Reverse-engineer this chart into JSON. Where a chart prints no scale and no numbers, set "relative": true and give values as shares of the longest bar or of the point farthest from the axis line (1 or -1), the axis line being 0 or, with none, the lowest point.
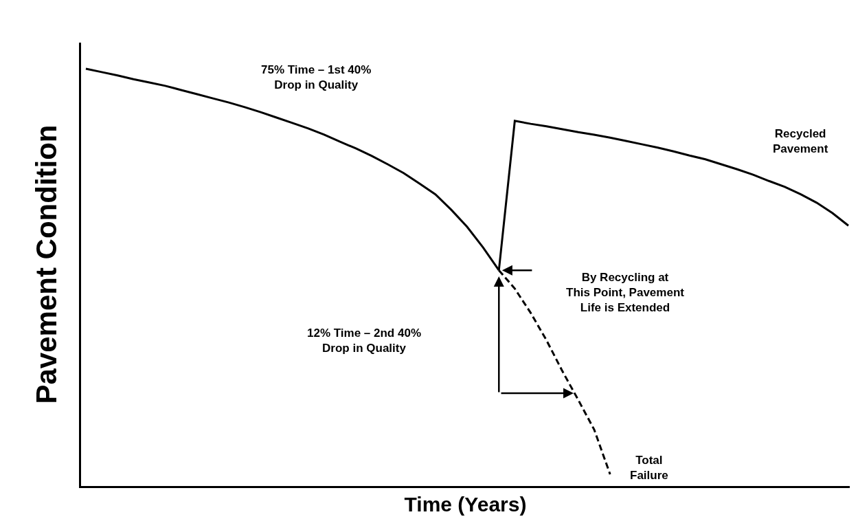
{
  "chart_data": {
    "type": "line",
    "relative": true,
    "xlabel": "Time (Years)",
    "ylabel": "Pavement Condition",
    "categories": [
      null,
      null,
      null,
      null,
      null,
      null,
      null,
      null,
      null,
      null,
      null,
      null,
      null,
      null,
      null,
      null,
      null,
      null,
      null,
      null,
      null,
      null,
      null,
      null,
      null,
      null,
      null,
      null,
      null,
      null,
      null,
      null,
      null,
      null,
      null,
      null,
      null,
      null,
      null,
      null,
      null,
      null,
      null,
      null,
      null,
      null,
      null,
      null,
      null
    ],
    "series": [
      {
        "color": "#000000",
        "line_style": "solid",
        "values": [
          1.0,
          0.992,
          0.984,
          0.975,
          0.967,
          0.959,
          0.949,
          0.939,
          0.929,
          0.919,
          0.908,
          0.896,
          0.883,
          0.87,
          0.857,
          0.842,
          0.825,
          0.809,
          0.791,
          0.771,
          0.75,
          0.725,
          0.699,
          0.662,
          0.621,
          0.572,
          0.517,
          null,
          null,
          null,
          null,
          null,
          null,
          null,
          null,
          null,
          null,
          null,
          null,
          null,
          null,
          null,
          null,
          null,
          null,
          null,
          null,
          null,
          null
        ]
      },
      {
        "color": "#000000",
        "line_style": "dashed",
        "values": [
          null,
          null,
          null,
          null,
          null,
          null,
          null,
          null,
          null,
          null,
          null,
          null,
          null,
          null,
          null,
          null,
          null,
          null,
          null,
          null,
          null,
          null,
          null,
          null,
          null,
          null,
          0.517,
          0.473,
          0.415,
          0.349,
          0.275,
          0.206,
          0.135,
          0.028,
          null,
          null,
          null,
          null,
          null,
          null,
          null,
          null,
          null,
          null,
          null,
          null,
          null,
          null,
          null
        ]
      },
      {
        "color": "#000000",
        "line_style": "solid",
        "values": [
          null,
          null,
          null,
          null,
          null,
          null,
          null,
          null,
          null,
          null,
          null,
          null,
          null,
          null,
          null,
          null,
          null,
          null,
          null,
          null,
          null,
          null,
          null,
          null,
          null,
          null,
          0.517,
          0.875,
          0.868,
          0.862,
          0.855,
          0.848,
          0.842,
          0.835,
          0.827,
          0.819,
          0.811,
          0.802,
          0.792,
          0.783,
          0.771,
          0.759,
          0.746,
          0.731,
          0.717,
          0.699,
          0.679,
          0.654,
          0.624
        ]
      }
    ],
    "annotations": [
      "75% Time – 1st 40%\nDrop in Quality",
      "12% Time – 2nd 40%\nDrop in Quality",
      "Recycled\nPavement",
      "By Recycling at\nThis Point, Pavement\nLife is Extended",
      "Total\nFailure"
    ],
    "marker": "none"
  }
}
